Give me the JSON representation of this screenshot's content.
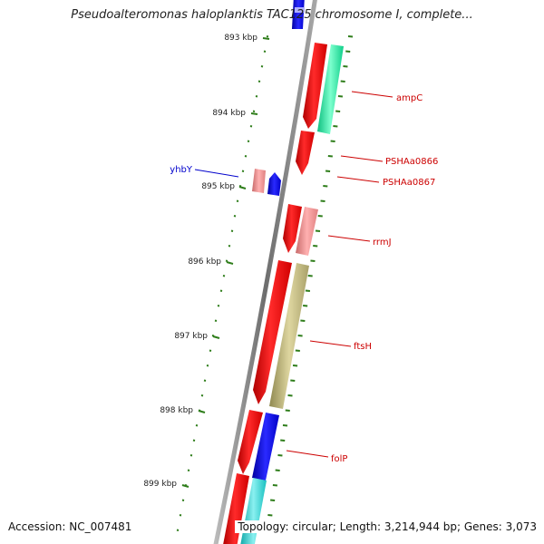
{
  "title": "Pseudoalteromonas haloplanktis TAC125 chromosome I, complete...",
  "accession": "Accession: NC_007481",
  "topology": "Topology: circular; Length: 3,214,944 bp; Genes: 3,073",
  "colors": {
    "backbone": "#808080",
    "tick": "#2e7d1a",
    "gene_label_red": "#cc0000",
    "gene_label_blue": "#0000cc",
    "red": "#ff0000",
    "pink": "#f08a8a",
    "blue": "#0000ff",
    "green": "#14e39a",
    "olive": "#b8b070",
    "cyan": "#22d3d3"
  },
  "scale_labels": [
    "893 kbp",
    "894 kbp",
    "895 kbp",
    "896 kbp",
    "897 kbp",
    "898 kbp",
    "899 kbp"
  ],
  "genes": [
    {
      "name": "ampC",
      "label_color": "red"
    },
    {
      "name": "PSHAa0866",
      "label_color": "red"
    },
    {
      "name": "PSHAa0867",
      "label_color": "red"
    },
    {
      "name": "rrmJ",
      "label_color": "red"
    },
    {
      "name": "ftsH",
      "label_color": "red"
    },
    {
      "name": "folP",
      "label_color": "red"
    },
    {
      "name": "yhbY",
      "label_color": "blue"
    }
  ]
}
